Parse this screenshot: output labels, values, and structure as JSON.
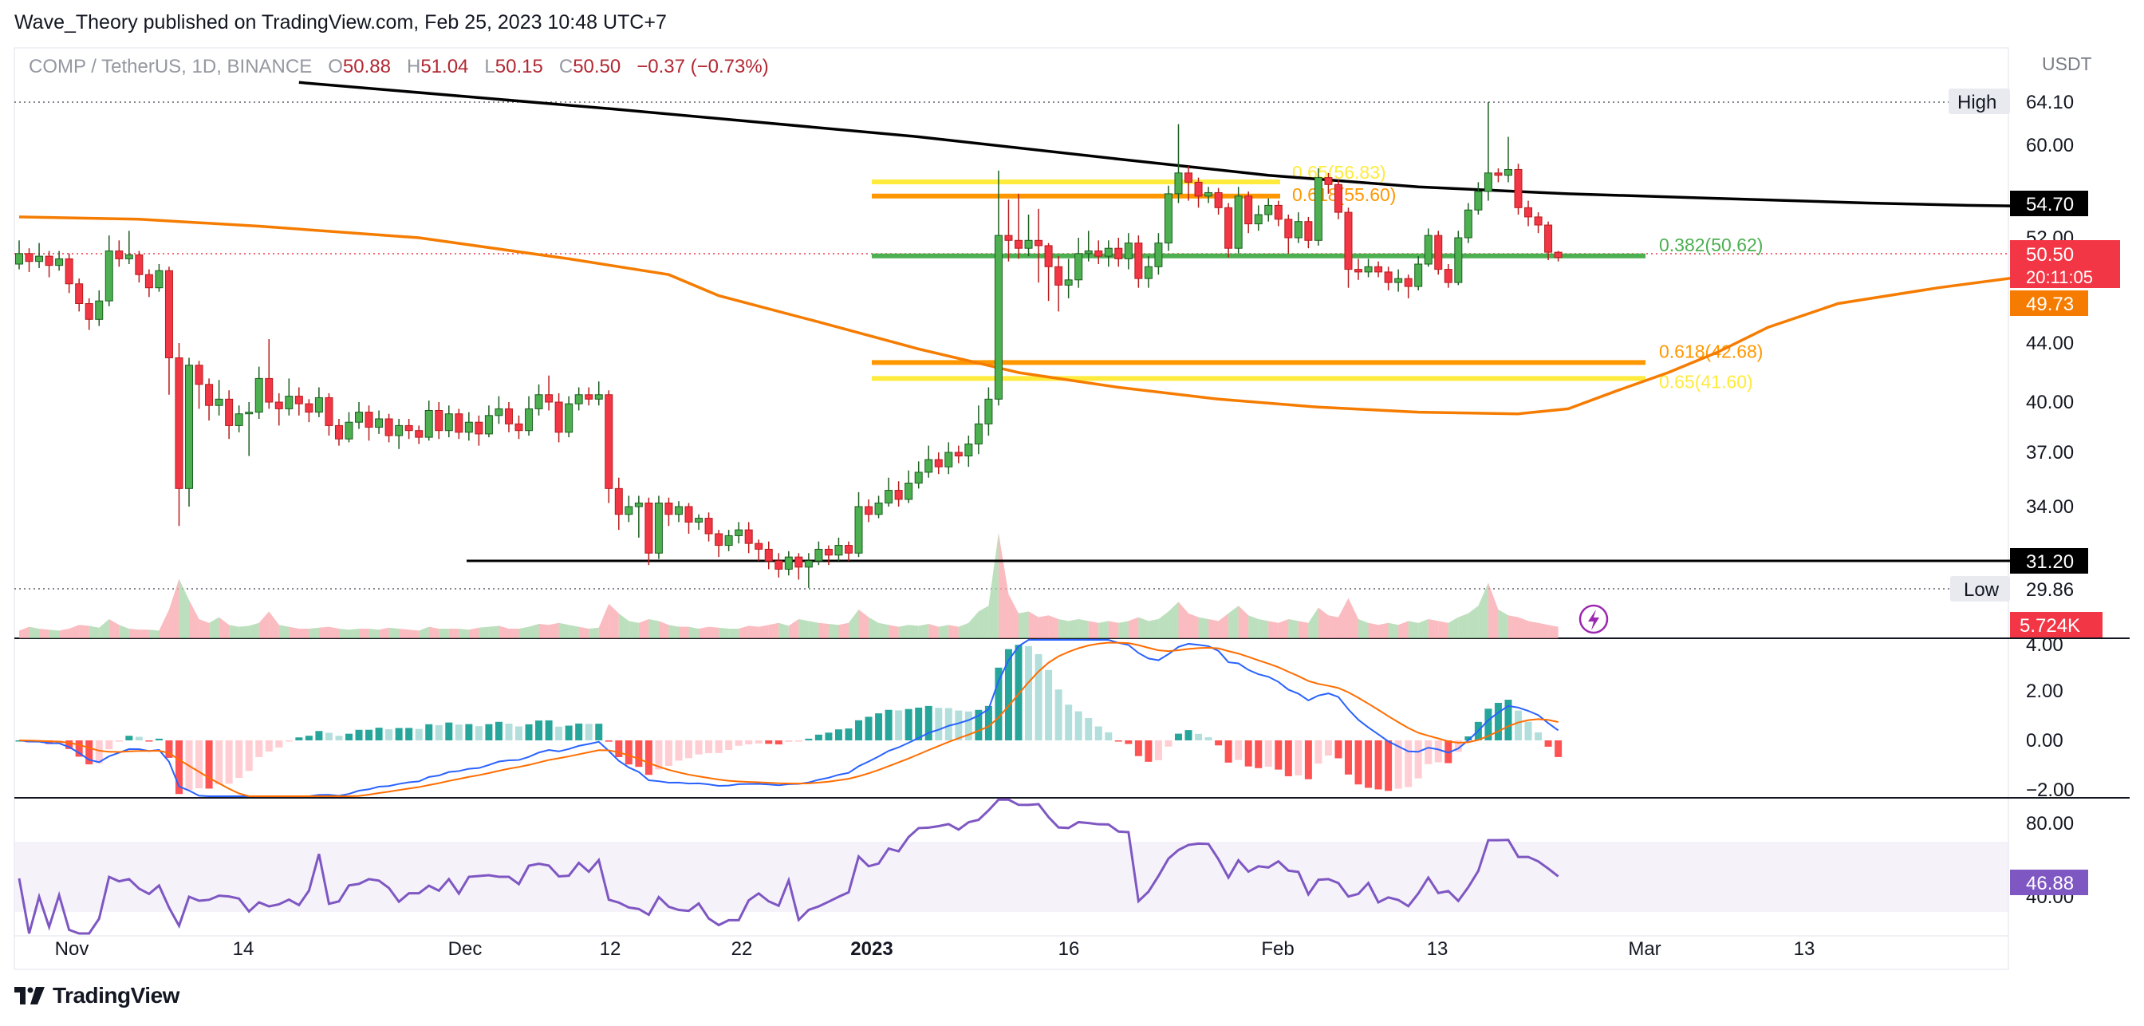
{
  "header": {
    "publisher_line": "Wave_Theory published on TradingView.com, Feb 25, 2023 10:48 UTC+7"
  },
  "legend": {
    "symbol": "COMP / TetherUS, 1D, BINANCE",
    "o_label": "O",
    "o": "50.88",
    "h_label": "H",
    "h": "51.04",
    "l_label": "L",
    "l": "50.15",
    "c_label": "C",
    "c": "50.50",
    "change": "−0.37 (−0.73%)"
  },
  "footer": {
    "brand": "TradingView"
  },
  "colors": {
    "up": "#26a69a",
    "up_candle": "#4caf50",
    "down": "#f23645",
    "ma_orange": "#f57c00",
    "ma_black": "#000000",
    "fib_yellow": "#ffeb3b",
    "fib_orange": "#ff9800",
    "fib_green": "#4caf50",
    "macd_line": "#2962ff",
    "signal_line": "#ff6d00",
    "rsi": "#7e57c2"
  },
  "chart_data": [
    {
      "type": "candlestick",
      "currency": "USDT",
      "y_ticks": [
        "60.00",
        "52.00",
        "44.00",
        "40.00",
        "37.00",
        "34.00"
      ],
      "x_ticks": [
        "Nov",
        "14",
        "Dec",
        "12",
        "22",
        "2023",
        "16",
        "Feb",
        "13",
        "Mar",
        "13"
      ],
      "price_labels": {
        "high_label": "High",
        "high": "64.10",
        "low_label": "Low",
        "low": "29.86",
        "ma200": "54.70",
        "last": "50.50",
        "countdown": "20:11:05",
        "ma50": "49.73",
        "support": "31.20",
        "volume": "5.724K"
      },
      "fib_levels": [
        {
          "label": "0.65(56.83)",
          "value": 56.83,
          "color": "#ffeb3b"
        },
        {
          "label": "0.618(55.60)",
          "value": 55.6,
          "color": "#ff9800"
        },
        {
          "label": "0.382(50.62)",
          "value": 50.62,
          "color": "#4caf50"
        },
        {
          "label": "0.618(42.68)",
          "value": 42.68,
          "color": "#ff9800"
        },
        {
          "label": "0.65(41.60)",
          "value": 41.6,
          "color": "#ffeb3b"
        }
      ],
      "candles": [
        [
          50.0,
          50.8,
          51.8,
          49.6
        ],
        [
          50.8,
          50.2,
          51.2,
          49.4
        ],
        [
          50.2,
          50.6,
          51.6,
          49.7
        ],
        [
          50.6,
          49.9,
          51.0,
          49.0
        ],
        [
          49.9,
          50.4,
          51.0,
          49.5
        ],
        [
          50.4,
          48.5,
          50.8,
          47.8
        ],
        [
          48.5,
          47.0,
          48.9,
          46.4
        ],
        [
          47.0,
          45.8,
          47.4,
          45.0
        ],
        [
          45.8,
          47.2,
          48.0,
          45.3
        ],
        [
          47.2,
          51.0,
          52.2,
          46.8
        ],
        [
          51.0,
          50.4,
          51.8,
          49.8
        ],
        [
          50.4,
          50.7,
          52.6,
          50.0
        ],
        [
          50.7,
          49.2,
          51.0,
          48.6
        ],
        [
          49.2,
          48.2,
          49.6,
          47.5
        ],
        [
          48.2,
          49.5,
          50.0,
          47.9
        ],
        [
          49.5,
          43.0,
          49.8,
          40.5
        ],
        [
          43.0,
          35.0,
          44.0,
          33.0
        ],
        [
          35.0,
          42.5,
          43.0,
          34.0
        ],
        [
          42.5,
          41.2,
          42.8,
          39.6
        ],
        [
          41.2,
          39.8,
          41.6,
          38.9
        ],
        [
          39.8,
          40.2,
          41.5,
          39.2
        ],
        [
          40.2,
          38.6,
          40.8,
          37.8
        ],
        [
          38.6,
          39.3,
          39.8,
          38.2
        ],
        [
          39.3,
          39.4,
          40.0,
          36.8
        ],
        [
          39.4,
          41.6,
          42.4,
          39.0
        ],
        [
          41.6,
          40.0,
          44.3,
          39.6
        ],
        [
          40.0,
          39.6,
          40.6,
          38.6
        ],
        [
          39.6,
          40.4,
          41.6,
          39.2
        ],
        [
          40.4,
          39.9,
          41.0,
          39.2
        ],
        [
          39.9,
          39.4,
          40.2,
          38.8
        ],
        [
          39.4,
          40.3,
          41.0,
          39.1
        ],
        [
          40.3,
          38.6,
          40.6,
          38.0
        ],
        [
          38.6,
          37.8,
          39.0,
          37.4
        ],
        [
          37.8,
          38.8,
          39.4,
          37.6
        ],
        [
          38.8,
          39.4,
          40.0,
          38.4
        ],
        [
          39.4,
          38.5,
          39.8,
          37.7
        ],
        [
          38.5,
          39.0,
          39.5,
          38.1
        ],
        [
          39.0,
          38.0,
          39.3,
          37.6
        ],
        [
          38.0,
          38.6,
          39.0,
          37.2
        ],
        [
          38.6,
          38.3,
          39.0,
          37.8
        ],
        [
          38.3,
          37.9,
          38.6,
          37.5
        ],
        [
          37.9,
          39.5,
          40.1,
          37.7
        ],
        [
          39.5,
          38.3,
          40.0,
          37.8
        ],
        [
          38.3,
          39.3,
          39.8,
          37.9
        ],
        [
          39.3,
          38.2,
          39.6,
          37.8
        ],
        [
          38.2,
          38.8,
          39.4,
          37.7
        ],
        [
          38.8,
          38.1,
          39.2,
          37.4
        ],
        [
          38.1,
          39.2,
          39.8,
          37.9
        ],
        [
          39.2,
          39.6,
          40.4,
          38.7
        ],
        [
          39.6,
          38.7,
          40.0,
          38.2
        ],
        [
          38.7,
          38.3,
          39.2,
          37.8
        ],
        [
          38.3,
          39.6,
          40.4,
          38.0
        ],
        [
          39.6,
          40.5,
          41.2,
          39.2
        ],
        [
          40.5,
          40.0,
          41.8,
          39.5
        ],
        [
          40.0,
          38.2,
          40.6,
          37.6
        ],
        [
          38.2,
          39.9,
          40.4,
          37.9
        ],
        [
          39.9,
          40.5,
          41.0,
          39.5
        ],
        [
          40.5,
          40.2,
          41.0,
          39.8
        ],
        [
          40.2,
          40.5,
          41.4,
          39.8
        ],
        [
          40.5,
          35.0,
          40.8,
          34.2
        ],
        [
          35.0,
          33.6,
          35.6,
          32.8
        ],
        [
          33.6,
          34.0,
          34.6,
          33.2
        ],
        [
          34.0,
          34.2,
          34.6,
          32.4
        ],
        [
          34.2,
          31.6,
          34.5,
          31.0
        ],
        [
          31.6,
          34.2,
          34.6,
          31.3
        ],
        [
          34.2,
          33.6,
          34.5,
          33.0
        ],
        [
          33.6,
          34.0,
          34.3,
          33.2
        ],
        [
          34.0,
          33.2,
          34.2,
          32.6
        ],
        [
          33.2,
          33.4,
          33.6,
          32.8
        ],
        [
          33.4,
          32.6,
          33.7,
          32.2
        ],
        [
          32.6,
          32.0,
          32.8,
          31.4
        ],
        [
          32.0,
          32.5,
          32.8,
          31.7
        ],
        [
          32.5,
          32.8,
          33.2,
          32.1
        ],
        [
          32.8,
          32.1,
          33.2,
          31.6
        ],
        [
          32.1,
          31.8,
          32.3,
          31.2
        ],
        [
          31.8,
          31.2,
          32.2,
          30.8
        ],
        [
          31.2,
          30.8,
          31.6,
          30.4
        ],
        [
          30.8,
          31.4,
          31.7,
          30.5
        ],
        [
          31.4,
          30.9,
          31.6,
          30.3
        ],
        [
          30.9,
          31.2,
          31.6,
          29.9
        ],
        [
          31.2,
          31.8,
          32.2,
          31.0
        ],
        [
          31.8,
          31.5,
          32.0,
          31.0
        ],
        [
          31.5,
          32.0,
          32.4,
          31.2
        ],
        [
          32.0,
          31.6,
          32.2,
          31.2
        ],
        [
          31.6,
          34.0,
          34.8,
          31.4
        ],
        [
          34.0,
          33.6,
          34.4,
          33.2
        ],
        [
          33.6,
          34.2,
          34.6,
          33.4
        ],
        [
          34.2,
          34.9,
          35.6,
          34.0
        ],
        [
          34.9,
          34.4,
          35.4,
          34.0
        ],
        [
          34.4,
          35.3,
          36.0,
          34.2
        ],
        [
          35.3,
          35.9,
          36.5,
          35.0
        ],
        [
          35.9,
          36.6,
          37.4,
          35.6
        ],
        [
          36.6,
          36.2,
          37.0,
          35.8
        ],
        [
          36.2,
          37.0,
          37.6,
          35.8
        ],
        [
          37.0,
          36.8,
          37.4,
          36.4
        ],
        [
          36.8,
          37.5,
          38.0,
          36.2
        ],
        [
          37.5,
          38.7,
          39.8,
          36.9
        ],
        [
          38.7,
          40.2,
          41.0,
          38.0
        ],
        [
          40.2,
          52.2,
          57.8,
          39.8
        ],
        [
          52.2,
          51.8,
          55.3,
          50.2
        ],
        [
          51.8,
          51.2,
          55.8,
          50.4
        ],
        [
          51.2,
          51.8,
          54.0,
          50.6
        ],
        [
          51.8,
          51.4,
          54.5,
          48.6
        ],
        [
          51.4,
          49.8,
          51.6,
          47.2
        ],
        [
          49.8,
          48.4,
          50.6,
          46.4
        ],
        [
          48.4,
          48.8,
          50.4,
          47.4
        ],
        [
          48.8,
          50.8,
          52.0,
          48.2
        ],
        [
          50.8,
          51.0,
          52.6,
          50.2
        ],
        [
          51.0,
          50.6,
          51.8,
          50.0
        ],
        [
          50.6,
          51.2,
          51.8,
          49.8
        ],
        [
          51.2,
          50.4,
          52.0,
          49.8
        ],
        [
          50.4,
          51.6,
          52.4,
          49.6
        ],
        [
          51.6,
          48.9,
          52.2,
          48.2
        ],
        [
          48.9,
          49.8,
          50.6,
          48.2
        ],
        [
          49.8,
          51.6,
          52.4,
          49.2
        ],
        [
          51.6,
          55.8,
          56.5,
          51.0
        ],
        [
          55.8,
          57.6,
          62.0,
          55.0
        ],
        [
          57.6,
          56.8,
          58.2,
          55.2
        ],
        [
          56.8,
          55.6,
          57.2,
          54.6
        ],
        [
          55.6,
          55.9,
          56.4,
          55.0
        ],
        [
          55.9,
          54.6,
          56.3,
          54.0
        ],
        [
          54.6,
          51.2,
          55.0,
          50.5
        ],
        [
          51.2,
          55.6,
          56.4,
          50.8
        ],
        [
          55.6,
          53.2,
          56.0,
          52.4
        ],
        [
          53.2,
          54.0,
          54.8,
          52.6
        ],
        [
          54.0,
          54.8,
          55.4,
          53.4
        ],
        [
          54.8,
          53.6,
          55.2,
          53.0
        ],
        [
          53.6,
          52.0,
          54.0,
          50.8
        ],
        [
          52.0,
          53.4,
          54.2,
          51.6
        ],
        [
          53.4,
          51.8,
          53.8,
          51.2
        ],
        [
          51.8,
          57.2,
          58.0,
          51.4
        ],
        [
          57.2,
          56.6,
          57.6,
          55.8
        ],
        [
          56.6,
          54.2,
          57.0,
          53.6
        ],
        [
          54.2,
          49.6,
          54.6,
          48.2
        ],
        [
          49.6,
          49.4,
          50.4,
          48.8
        ],
        [
          49.4,
          49.8,
          50.4,
          49.0
        ],
        [
          49.8,
          49.4,
          50.2,
          49.0
        ],
        [
          49.4,
          48.6,
          49.8,
          48.0
        ],
        [
          48.6,
          48.9,
          49.6,
          47.9
        ],
        [
          48.9,
          48.3,
          49.2,
          47.4
        ],
        [
          48.3,
          50.0,
          50.6,
          48.0
        ],
        [
          50.0,
          52.2,
          52.8,
          49.8
        ],
        [
          52.2,
          49.6,
          52.6,
          49.2
        ],
        [
          49.6,
          48.6,
          50.0,
          48.2
        ],
        [
          48.6,
          52.0,
          52.6,
          48.4
        ],
        [
          52.0,
          54.4,
          55.0,
          51.6
        ],
        [
          54.4,
          56.0,
          56.8,
          54.0
        ],
        [
          56.0,
          57.6,
          64.1,
          55.2
        ],
        [
          57.6,
          57.4,
          58.0,
          56.8
        ],
        [
          57.4,
          57.9,
          60.8,
          56.8
        ],
        [
          57.9,
          54.6,
          58.4,
          54.0
        ],
        [
          54.6,
          53.8,
          55.2,
          53.0
        ],
        [
          53.8,
          53.1,
          54.2,
          52.4
        ],
        [
          53.1,
          50.9,
          53.4,
          50.3
        ],
        [
          50.9,
          50.5,
          51.0,
          50.2
        ]
      ],
      "volume": [
        0.8,
        1.2,
        1.0,
        0.9,
        0.8,
        1.0,
        1.4,
        1.3,
        1.1,
        2.0,
        1.4,
        1.0,
        0.9,
        0.9,
        0.8,
        3.0,
        6.2,
        4.0,
        2.0,
        1.6,
        2.2,
        1.4,
        1.2,
        1.3,
        1.6,
        2.8,
        1.4,
        1.2,
        1.0,
        1.0,
        1.1,
        1.2,
        1.0,
        0.9,
        1.0,
        1.0,
        0.9,
        1.1,
        1.0,
        0.9,
        0.8,
        1.2,
        1.0,
        1.0,
        1.0,
        0.9,
        1.1,
        1.2,
        1.3,
        1.0,
        1.0,
        1.2,
        1.5,
        1.4,
        1.6,
        1.4,
        1.2,
        1.0,
        1.1,
        3.6,
        2.6,
        1.8,
        1.6,
        2.0,
        1.8,
        1.4,
        1.2,
        1.2,
        1.0,
        1.2,
        1.1,
        1.0,
        1.0,
        1.3,
        1.2,
        1.4,
        1.6,
        1.3,
        2.0,
        1.8,
        1.6,
        1.5,
        1.4,
        1.6,
        3.0,
        2.2,
        1.6,
        1.4,
        1.2,
        1.4,
        1.3,
        1.5,
        1.2,
        1.4,
        1.2,
        1.6,
        2.8,
        3.4,
        11.0,
        4.6,
        2.6,
        2.8,
        2.2,
        2.4,
        2.0,
        1.8,
        2.0,
        1.8,
        1.6,
        1.8,
        1.6,
        1.8,
        2.2,
        1.8,
        2.0,
        2.8,
        3.8,
        2.6,
        2.2,
        2.0,
        1.8,
        2.6,
        3.4,
        2.4,
        2.0,
        1.8,
        1.6,
        2.0,
        1.8,
        1.6,
        3.2,
        2.4,
        2.2,
        4.2,
        2.0,
        1.6,
        1.4,
        1.6,
        1.4,
        1.8,
        1.6,
        2.0,
        1.8,
        1.6,
        2.2,
        2.6,
        3.4,
        5.8,
        3.0,
        2.4,
        2.2,
        1.8,
        1.6,
        1.4,
        1.2
      ],
      "ma50": [
        [
          0,
          53.8
        ],
        [
          12,
          53.6
        ],
        [
          24,
          53.0
        ],
        [
          40,
          52.0
        ],
        [
          55,
          50.4
        ],
        [
          65,
          49.2
        ],
        [
          70,
          47.6
        ],
        [
          80,
          45.6
        ],
        [
          90,
          43.6
        ],
        [
          100,
          42.0
        ],
        [
          110,
          41.0
        ],
        [
          120,
          40.2
        ],
        [
          130,
          39.7
        ],
        [
          140,
          39.4
        ],
        [
          150,
          39.3
        ],
        [
          155,
          39.6
        ],
        [
          160,
          40.8
        ],
        [
          165,
          42.0
        ],
        [
          170,
          43.4
        ],
        [
          175,
          45.2
        ],
        [
          182,
          47.0
        ],
        [
          192,
          48.2
        ],
        [
          200,
          49.0
        ],
        [
          204,
          49.73
        ]
      ],
      "ma200": [
        [
          28,
          66.0
        ],
        [
          60,
          63.4
        ],
        [
          90,
          60.8
        ],
        [
          110,
          58.8
        ],
        [
          125,
          57.4
        ],
        [
          140,
          56.4
        ],
        [
          155,
          55.8
        ],
        [
          170,
          55.4
        ],
        [
          185,
          55.0
        ],
        [
          195,
          54.8
        ],
        [
          204,
          54.7
        ]
      ]
    },
    {
      "type": "macd",
      "y_ticks": [
        "4.00",
        "2.00",
        "0.00",
        "−2.00"
      ]
    },
    {
      "type": "rsi",
      "y_ticks": [
        "80.00",
        "40.00"
      ],
      "last": "46.88"
    }
  ]
}
